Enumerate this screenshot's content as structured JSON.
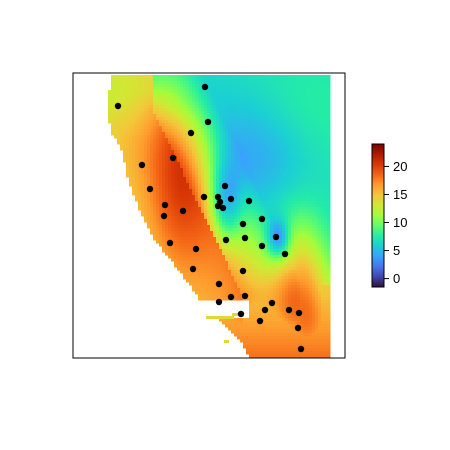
{
  "map": {
    "type": "raster-heatmap-with-points",
    "title": "",
    "xlabel": "",
    "ylabel": "",
    "axes_shown": false,
    "legend": {
      "placement": "right",
      "palette": [
        "#30123b",
        "#4145ab",
        "#4675ed",
        "#39a2fc",
        "#1bcfd4",
        "#24eca6",
        "#61fc6c",
        "#a4fc3b",
        "#d1e834",
        "#f3c63a",
        "#fe9b2d",
        "#f36315",
        "#d93806",
        "#b11901",
        "#7a0403"
      ],
      "range": [
        -1.5,
        24
      ],
      "ticks": [
        0,
        5,
        10,
        15,
        20
      ]
    },
    "point_color": "#000000",
    "stations": [
      [
        205,
        87
      ],
      [
        118,
        106
      ],
      [
        208,
        122
      ],
      [
        191,
        133
      ],
      [
        173,
        158
      ],
      [
        142,
        165
      ],
      [
        150,
        189
      ],
      [
        225,
        186
      ],
      [
        204,
        197
      ],
      [
        218,
        197
      ],
      [
        220,
        202
      ],
      [
        218,
        206
      ],
      [
        223,
        208
      ],
      [
        231,
        199
      ],
      [
        249,
        201
      ],
      [
        165,
        205
      ],
      [
        183,
        211
      ],
      [
        164,
        216
      ],
      [
        262,
        219
      ],
      [
        243,
        224
      ],
      [
        276,
        237
      ],
      [
        245,
        238
      ],
      [
        226,
        240
      ],
      [
        170,
        243
      ],
      [
        262,
        246
      ],
      [
        196,
        249
      ],
      [
        285,
        254
      ],
      [
        193,
        269
      ],
      [
        243,
        271
      ],
      [
        219,
        284
      ],
      [
        245,
        296
      ],
      [
        231,
        297
      ],
      [
        219,
        302
      ],
      [
        272,
        303
      ],
      [
        241,
        314
      ],
      [
        265,
        310
      ],
      [
        289,
        310
      ],
      [
        299,
        313
      ],
      [
        260,
        321
      ],
      [
        298,
        328
      ],
      [
        301,
        349
      ]
    ]
  }
}
